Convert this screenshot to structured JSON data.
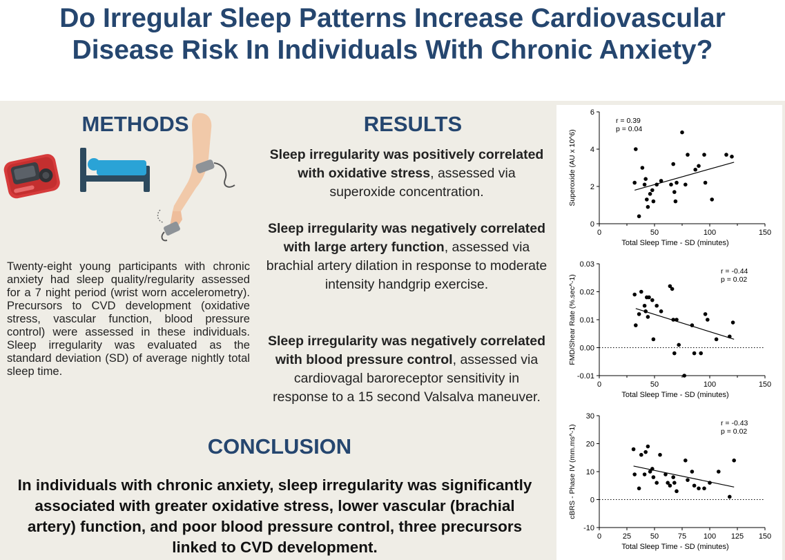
{
  "title": {
    "line1": "Do Irregular Sleep Patterns Increase Cardiovascular",
    "line2": "Disease Risk In Individuals With Chronic Anxiety?"
  },
  "methods": {
    "heading": "METHODS",
    "text": "Twenty-eight young participants with chronic anxiety had sleep quality/regularity assessed for a 7 night period (wrist worn accelerometry). Precursors to CVD development (oxidative stress, vascular function, blood pressure control) were assessed in these individuals. Sleep irregularity was evaluated as the standard deviation (SD) of average nightly total sleep time.",
    "icons": [
      "blood-pressure-monitor-icon",
      "hospital-bed-icon",
      "arm-blood-draw-icon"
    ]
  },
  "results": {
    "heading": "RESULTS",
    "items": [
      {
        "bold": "Sleep irregularity was positively correlated with oxidative stress",
        "rest": ", assessed via superoxide concentration."
      },
      {
        "bold": "Sleep irregularity was negatively correlated with large artery function",
        "rest": ", assessed via brachial artery dilation in response to moderate intensity handgrip exercise."
      },
      {
        "bold": "Sleep irregularity was negatively correlated with blood pressure control",
        "rest": ", assessed via cardiovagal baroreceptor sensitivity in response to a 15 second Valsalva maneuver."
      }
    ]
  },
  "conclusion": {
    "heading": "CONCLUSION",
    "text": "In individuals with chronic anxiety, sleep irregularity was significantly associated with greater oxidative stress, lower vascular (brachial artery) function, and poor blood pressure control, three precursors linked to CVD development."
  },
  "colors": {
    "title": "#25466f",
    "panel": "#efede6",
    "icon_red": "#d63b3b",
    "icon_navy": "#2d4a5e",
    "icon_blue": "#2aa3d6"
  },
  "chart_data": [
    {
      "type": "scatter",
      "xlabel": "Total Sleep Time - SD (minutes)",
      "ylabel": "Superoxide (AU x 10^6)",
      "xlim": [
        0,
        150
      ],
      "ylim": [
        0,
        6
      ],
      "xticks": [
        "0",
        "50",
        "100",
        "150"
      ],
      "xticks_minor": [
        "25",
        "75",
        "125"
      ],
      "yticks": [
        "0",
        "2",
        "4",
        "6"
      ],
      "annotation": [
        "r = 0.39",
        "p = 0.04"
      ],
      "zero_line": false,
      "trend": [
        [
          32,
          1.8
        ],
        [
          122,
          3.3
        ]
      ],
      "points": [
        [
          32,
          2.2
        ],
        [
          33,
          4.0
        ],
        [
          36,
          0.4
        ],
        [
          39,
          3.0
        ],
        [
          41,
          2.1
        ],
        [
          42,
          2.4
        ],
        [
          43,
          1.3
        ],
        [
          44,
          0.9
        ],
        [
          46,
          1.6
        ],
        [
          48,
          1.8
        ],
        [
          49,
          1.2
        ],
        [
          52,
          2.1
        ],
        [
          56,
          2.3
        ],
        [
          65,
          2.1
        ],
        [
          67,
          3.2
        ],
        [
          68,
          1.7
        ],
        [
          69,
          1.2
        ],
        [
          70,
          2.2
        ],
        [
          75,
          4.9
        ],
        [
          78,
          2.1
        ],
        [
          80,
          3.7
        ],
        [
          87,
          2.9
        ],
        [
          90,
          3.1
        ],
        [
          95,
          3.7
        ],
        [
          96,
          2.2
        ],
        [
          102,
          1.3
        ],
        [
          115,
          3.7
        ],
        [
          120,
          3.6
        ]
      ]
    },
    {
      "type": "scatter",
      "xlabel": "Total Sleep Time - SD (minutes)",
      "ylabel": "FMD/Shear Rate (%.sec^-1)",
      "xlim": [
        0,
        150
      ],
      "ylim": [
        -0.01,
        0.03
      ],
      "xticks": [
        "0",
        "50",
        "100",
        "150"
      ],
      "xticks_minor": [
        "25",
        "75",
        "125"
      ],
      "yticks": [
        "-0.01",
        "0.00",
        "0.01",
        "0.02",
        "0.03"
      ],
      "annotation": [
        "r = -0.44",
        "p = 0.02"
      ],
      "zero_line": true,
      "trend": [
        [
          33,
          0.014
        ],
        [
          122,
          0.003
        ]
      ],
      "points": [
        [
          32,
          0.019
        ],
        [
          33,
          0.008
        ],
        [
          36,
          0.012
        ],
        [
          38,
          0.02
        ],
        [
          41,
          0.015
        ],
        [
          42,
          0.013
        ],
        [
          43,
          0.018
        ],
        [
          44,
          0.011
        ],
        [
          45,
          0.018
        ],
        [
          48,
          0.017
        ],
        [
          49,
          0.003
        ],
        [
          52,
          0.015
        ],
        [
          56,
          0.013
        ],
        [
          64,
          0.022
        ],
        [
          66,
          0.021
        ],
        [
          67,
          0.01
        ],
        [
          68,
          -0.002
        ],
        [
          70,
          0.01
        ],
        [
          72,
          0.001
        ],
        [
          77,
          -0.01
        ],
        [
          84,
          0.008
        ],
        [
          86,
          -0.002
        ],
        [
          92,
          -0.002
        ],
        [
          96,
          0.012
        ],
        [
          98,
          0.01
        ],
        [
          106,
          0.003
        ],
        [
          118,
          0.004
        ],
        [
          121,
          0.009
        ]
      ]
    },
    {
      "type": "scatter",
      "xlabel": "Total Sleep Time - SD (minutes)",
      "ylabel": "cBRS - Phase IV (mm.ms^-1)",
      "xlim": [
        0,
        150
      ],
      "ylim": [
        -10,
        30
      ],
      "xticks": [
        "0",
        "25",
        "50",
        "75",
        "100",
        "125",
        "150"
      ],
      "xticks_minor": [],
      "yticks": [
        "-10",
        "0",
        "10",
        "20",
        "30"
      ],
      "annotation": [
        "r = -0.43",
        "p = 0.02"
      ],
      "zero_line": true,
      "trend": [
        [
          31,
          12
        ],
        [
          122,
          4.5
        ]
      ],
      "points": [
        [
          31,
          18
        ],
        [
          32,
          9
        ],
        [
          36,
          4
        ],
        [
          38,
          16
        ],
        [
          41,
          9
        ],
        [
          42,
          17
        ],
        [
          44,
          19
        ],
        [
          46,
          10
        ],
        [
          48,
          11
        ],
        [
          49,
          8
        ],
        [
          52,
          6
        ],
        [
          55,
          16
        ],
        [
          60,
          9
        ],
        [
          62,
          6
        ],
        [
          64,
          5
        ],
        [
          67,
          8
        ],
        [
          68,
          6
        ],
        [
          70,
          3
        ],
        [
          78,
          14
        ],
        [
          80,
          7
        ],
        [
          84,
          10
        ],
        [
          86,
          5
        ],
        [
          90,
          4
        ],
        [
          95,
          4
        ],
        [
          100,
          6
        ],
        [
          108,
          10
        ],
        [
          118,
          1
        ],
        [
          122,
          14
        ]
      ]
    }
  ]
}
